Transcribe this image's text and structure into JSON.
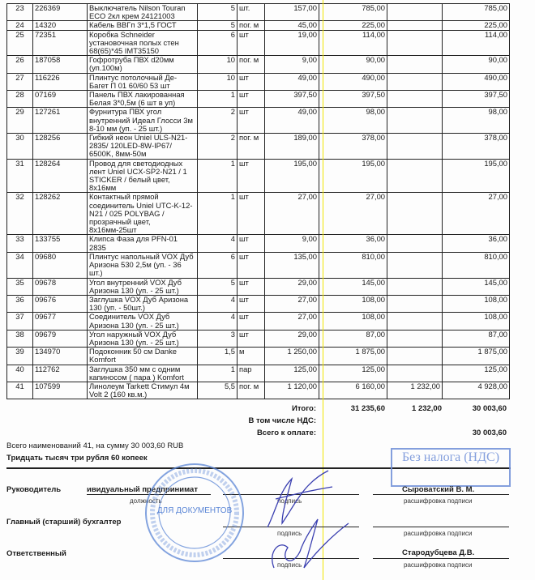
{
  "table": {
    "rows": [
      {
        "n": "23",
        "code": "226369",
        "name": "Выключатель  Nilson Touran ECO 2кл крем 24121003",
        "qty": "5",
        "unit": "шт.",
        "price": "157,00",
        "sum": "785,00",
        "discount": "",
        "total": "785,00"
      },
      {
        "n": "24",
        "code": "14320",
        "name": "Кабель ВВГп 3*1,5 ГОСТ",
        "qty": "5",
        "unit": "пог. м",
        "price": "45,00",
        "sum": "225,00",
        "discount": "",
        "total": "225,00"
      },
      {
        "n": "25",
        "code": "72351",
        "name": "Коробка Schneider установочная полых стен 68(65)*45 IMT35150",
        "qty": "6",
        "unit": "шт",
        "price": "19,00",
        "sum": "114,00",
        "discount": "",
        "total": "114,00"
      },
      {
        "n": "26",
        "code": "187058",
        "name": "Гофротруба ПВХ d20мм (уп.100м)",
        "qty": "10",
        "unit": "пог. м",
        "price": "9,00",
        "sum": "90,00",
        "discount": "",
        "total": "90,00"
      },
      {
        "n": "27",
        "code": "116226",
        "name": "Плинтус потолочный Де-Багет П 01 60/60 53 шт",
        "qty": "10",
        "unit": "шт",
        "price": "49,00",
        "sum": "490,00",
        "discount": "",
        "total": "490,00"
      },
      {
        "n": "28",
        "code": "07169",
        "name": "Панель ПВХ лакированная Белая  3*0,5м (6 шт в уп)",
        "qty": "1",
        "unit": "шт",
        "price": "397,50",
        "sum": "397,50",
        "discount": "",
        "total": "397,50"
      },
      {
        "n": "29",
        "code": "127261",
        "name": "Фурнитура ПВХ угол внутренний Идеал Глосси 3м 8-10 мм (уп. - 25 шт.)",
        "qty": "2",
        "unit": "шт",
        "price": "49,00",
        "sum": "98,00",
        "discount": "",
        "total": "98,00"
      },
      {
        "n": "30",
        "code": "128256",
        "name": "Гибкий неон Uniel ULS-N21-2835/ 120LED-8W-IP67/ 6500K, 8мм-50м",
        "qty": "2",
        "unit": "пог. м",
        "price": "189,00",
        "sum": "378,00",
        "discount": "",
        "total": "378,00"
      },
      {
        "n": "31",
        "code": "128264",
        "name": "Провод для светодиодных лент Uniel UCX-SP2-N21 / 1 STICKER / белый цвет, 8x16мм",
        "qty": "1",
        "unit": "шт",
        "price": "195,00",
        "sum": "195,00",
        "discount": "",
        "total": "195,00"
      },
      {
        "n": "32",
        "code": "128262",
        "name": "Контактный прямой соединитель Uniel UTC-K-12-N21 / 025 POLYBAG / прозрачный цвет, 8x16мм-25шт",
        "qty": "1",
        "unit": "шт",
        "price": "27,00",
        "sum": "27,00",
        "discount": "",
        "total": "27,00"
      },
      {
        "n": "33",
        "code": "133755",
        "name": "Клипса Фаза для PFN-01 2835",
        "qty": "4",
        "unit": "шт",
        "price": "9,00",
        "sum": "36,00",
        "discount": "",
        "total": "36,00"
      },
      {
        "n": "34",
        "code": "09680",
        "name": "Плинтус напольный VOX  Дуб Аризона 530  2,5м (уп. - 36 шт.)",
        "qty": "6",
        "unit": "шт",
        "price": "135,00",
        "sum": "810,00",
        "discount": "",
        "total": "810,00"
      },
      {
        "n": "35",
        "code": "09678",
        "name": "Угол внутренний VOX Дуб Аризона  130   (уп. - 25 шт.)",
        "qty": "5",
        "unit": "шт",
        "price": "29,00",
        "sum": "145,00",
        "discount": "",
        "total": "145,00"
      },
      {
        "n": "36",
        "code": "09676",
        "name": "Заглушка VOX Дуб Аризона 130 (уп. - 50шт.)",
        "qty": "4",
        "unit": "шт",
        "price": "27,00",
        "sum": "108,00",
        "discount": "",
        "total": "108,00"
      },
      {
        "n": "37",
        "code": "09677",
        "name": "Соединитель VOX Дуб Аризона 130 (уп. - 25 шт.)",
        "qty": "4",
        "unit": "шт",
        "price": "27,00",
        "sum": "108,00",
        "discount": "",
        "total": "108,00"
      },
      {
        "n": "38",
        "code": "09679",
        "name": "Угол наружный VOX Дуб Аризона 130  (уп. - 25 шт.)",
        "qty": "3",
        "unit": "шт",
        "price": "29,00",
        "sum": "87,00",
        "discount": "",
        "total": "87,00"
      },
      {
        "n": "39",
        "code": "134970",
        "name": "Подоконник 50 см Danke Komfort",
        "qty": "1,5",
        "unit": "м",
        "price": "1 250,00",
        "sum": "1 875,00",
        "discount": "",
        "total": "1 875,00"
      },
      {
        "n": "40",
        "code": "112762",
        "name": "Заглушка 350 мм с одним капиносом ( пара )  Komfort",
        "qty": "1",
        "unit": "пар",
        "price": "125,00",
        "sum": "125,00",
        "discount": "",
        "total": "125,00"
      },
      {
        "n": "41",
        "code": "107599",
        "name": "Линолеум Tarkett Стимул 4м Volt 2 (160 кв.м.)",
        "qty": "5,5",
        "unit": "пог. м",
        "price": "1 120,00",
        "sum": "6 160,00",
        "discount": "1 232,00",
        "total": "4 928,00"
      }
    ]
  },
  "totals": {
    "itogo_label": "Итого:",
    "itogo_sum": "31 235,60",
    "itogo_discount": "1 232,00",
    "itogo_total": "30 003,60",
    "vat_label": "В том числе НДС:",
    "pay_label": "Всего к оплате:",
    "pay_total": "30 003,60"
  },
  "summary": {
    "count_line": "Всего наименований 41, на сумму 30 003,60 RUB",
    "words_line": "Тридцать тысяч три рубля 60 копеек"
  },
  "signatures": {
    "director_label": "Руководитель",
    "director_position": "ивидуальный предпринимат",
    "position_caption": "должность",
    "signature_caption": "подпись",
    "decode_caption": "расшифровка подписи",
    "director_name": "Сыроватский В. М.",
    "accountant_label": "Главный (старший) бухгалтер",
    "responsible_label": "Ответственный",
    "responsible_name": "Стародубцева Д.В."
  },
  "stamps": {
    "tax_stamp": "Без налога (НДС)",
    "seal_text": "ДЛЯ ДОКУМЕНТОВ",
    "seal_color": "#5b86d6"
  }
}
